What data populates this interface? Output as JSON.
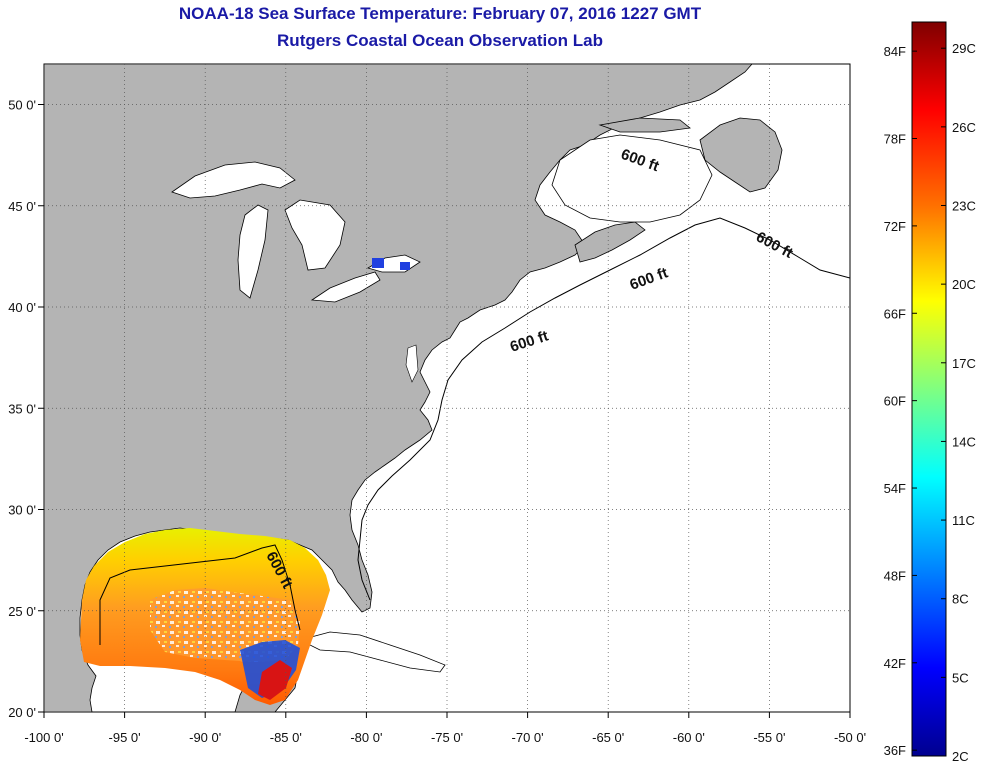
{
  "title": "NOAA-18 Sea Surface Temperature:  February 07, 2016 1227 GMT",
  "subtitle": "Rutgers Coastal Ocean Observation Lab",
  "axes": {
    "longitude_ticks": [
      "-100 0'",
      "-95 0'",
      "-90 0'",
      "-85 0'",
      "-80 0'",
      "-75 0'",
      "-70 0'",
      "-65 0'",
      "-60 0'",
      "-55 0'",
      "-50 0'"
    ],
    "latitude_ticks": [
      "50 0'",
      "45 0'",
      "40 0'",
      "35 0'",
      "30 0'",
      "25 0'",
      "20 0'"
    ],
    "lon_range": [
      -100,
      -50
    ],
    "lat_range": [
      20,
      52
    ],
    "grid": true
  },
  "contour_labels": [
    "600 ft",
    "600 ft",
    "600 ft",
    "600 ft",
    "600 ft"
  ],
  "colorbar": {
    "fahrenheit_labels": [
      "84F",
      "78F",
      "72F",
      "66F",
      "60F",
      "54F",
      "48F",
      "42F",
      "36F"
    ],
    "celsius_labels": [
      "29C",
      "26C",
      "23C",
      "20C",
      "17C",
      "14C",
      "11C",
      "8C",
      "5C",
      "2C"
    ],
    "range_celsius": [
      2,
      30
    ],
    "colors": [
      "#7f0000",
      "#ff0000",
      "#ff8000",
      "#ffff00",
      "#80ff80",
      "#00ffff",
      "#0080ff",
      "#0000ff",
      "#00008f"
    ]
  },
  "colors": {
    "land": "#b4b4b4",
    "ocean": "#ffffff",
    "title": "#1a1aa6"
  }
}
